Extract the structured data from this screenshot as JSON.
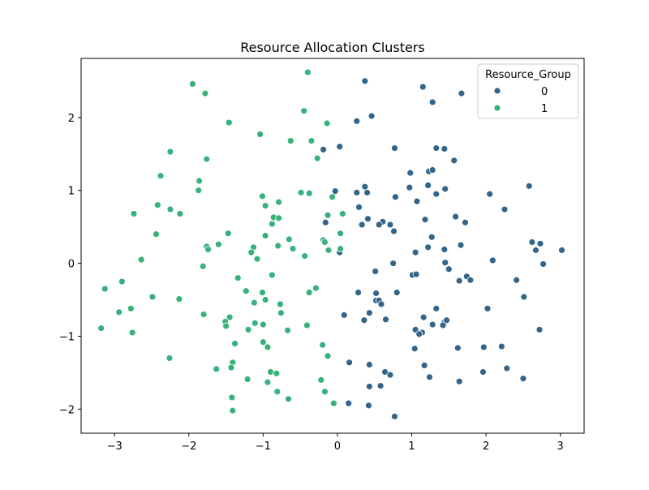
{
  "chart_data": {
    "type": "scatter",
    "title": "Resource Allocation Clusters",
    "xlabel": "",
    "ylabel": "",
    "xlim": [
      -3.45,
      3.32
    ],
    "ylim": [
      -2.33,
      2.81
    ],
    "xticks": [
      -3,
      -2,
      -1,
      0,
      1,
      2,
      3
    ],
    "yticks": [
      -2,
      -1,
      0,
      1,
      2
    ],
    "tick_labels_x": [
      "−3",
      "−2",
      "−1",
      "0",
      "1",
      "2",
      "3"
    ],
    "tick_labels_y": [
      "−2",
      "−1",
      "0",
      "1",
      "2"
    ],
    "grid": false,
    "legend": {
      "title": "Resource_Group",
      "placement": "top-right"
    },
    "series": [
      {
        "name": "0",
        "color": "#33658a",
        "points": [
          [
            0.37,
            2.5
          ],
          [
            1.15,
            2.42
          ],
          [
            1.67,
            2.33
          ],
          [
            1.28,
            2.21
          ],
          [
            0.46,
            2.02
          ],
          [
            0.26,
            1.95
          ],
          [
            0.03,
            1.6
          ],
          [
            -0.19,
            1.56
          ],
          [
            0.77,
            1.58
          ],
          [
            1.33,
            1.58
          ],
          [
            1.44,
            1.57
          ],
          [
            1.57,
            1.41
          ],
          [
            0.98,
            1.24
          ],
          [
            1.23,
            1.26
          ],
          [
            1.28,
            1.28
          ],
          [
            2.58,
            1.06
          ],
          [
            0.37,
            1.05
          ],
          [
            0.97,
            1.04
          ],
          [
            1.22,
            1.07
          ],
          [
            1.45,
            1.02
          ],
          [
            -0.03,
            0.99
          ],
          [
            0.26,
            0.97
          ],
          [
            0.4,
            0.97
          ],
          [
            1.33,
            0.95
          ],
          [
            2.05,
            0.95
          ],
          [
            0.78,
            0.91
          ],
          [
            1.07,
            0.85
          ],
          [
            0.29,
            0.77
          ],
          [
            2.25,
            0.74
          ],
          [
            1.59,
            0.64
          ],
          [
            0.41,
            0.61
          ],
          [
            1.18,
            0.6
          ],
          [
            0.61,
            0.57
          ],
          [
            -0.16,
            0.56
          ],
          [
            1.72,
            0.56
          ],
          [
            0.56,
            0.53
          ],
          [
            0.71,
            0.53
          ],
          [
            0.33,
            0.53
          ],
          [
            0.76,
            0.44
          ],
          [
            1.27,
            0.36
          ],
          [
            2.62,
            0.29
          ],
          [
            2.73,
            0.27
          ],
          [
            1.66,
            0.25
          ],
          [
            1.22,
            0.22
          ],
          [
            1.44,
            0.19
          ],
          [
            2.67,
            0.18
          ],
          [
            3.02,
            0.18
          ],
          [
            1.05,
            0.15
          ],
          [
            0.03,
            0.15
          ],
          [
            2.09,
            0.04
          ],
          [
            1.45,
            0.01
          ],
          [
            0.75,
            0.0
          ],
          [
            2.77,
            -0.01
          ],
          [
            1.5,
            -0.08
          ],
          [
            0.51,
            -0.11
          ],
          [
            1.01,
            -0.16
          ],
          [
            1.06,
            -0.15
          ],
          [
            1.74,
            -0.18
          ],
          [
            1.79,
            -0.23
          ],
          [
            1.64,
            -0.24
          ],
          [
            2.41,
            -0.23
          ],
          [
            0.28,
            -0.4
          ],
          [
            0.52,
            -0.41
          ],
          [
            0.8,
            -0.4
          ],
          [
            2.51,
            -0.46
          ],
          [
            0.52,
            -0.51
          ],
          [
            0.56,
            -0.51
          ],
          [
            0.59,
            -0.56
          ],
          [
            1.33,
            -0.62
          ],
          [
            2.02,
            -0.62
          ],
          [
            0.43,
            -0.68
          ],
          [
            0.09,
            -0.71
          ],
          [
            1.16,
            -0.74
          ],
          [
            0.36,
            -0.78
          ],
          [
            0.65,
            -0.77
          ],
          [
            1.44,
            -0.81
          ],
          [
            1.47,
            -0.78
          ],
          [
            1.28,
            -0.84
          ],
          [
            1.42,
            -0.85
          ],
          [
            2.72,
            -0.91
          ],
          [
            1.05,
            -0.91
          ],
          [
            1.14,
            -0.95
          ],
          [
            1.1,
            -0.97
          ],
          [
            1.97,
            -1.15
          ],
          [
            2.21,
            -1.14
          ],
          [
            1.62,
            -1.16
          ],
          [
            1.04,
            -1.17
          ],
          [
            0.16,
            -1.36
          ],
          [
            0.43,
            -1.39
          ],
          [
            1.17,
            -1.4
          ],
          [
            2.28,
            -1.44
          ],
          [
            0.64,
            -1.49
          ],
          [
            1.96,
            -1.49
          ],
          [
            0.71,
            -1.53
          ],
          [
            1.24,
            -1.56
          ],
          [
            2.5,
            -1.58
          ],
          [
            1.64,
            -1.62
          ],
          [
            0.43,
            -1.69
          ],
          [
            0.58,
            -1.68
          ],
          [
            0.15,
            -1.92
          ],
          [
            0.42,
            -1.95
          ],
          [
            0.77,
            -2.1
          ]
        ]
      },
      {
        "name": "1",
        "color": "#38b27a",
        "points": [
          [
            -0.4,
            2.62
          ],
          [
            -1.95,
            2.46
          ],
          [
            -1.78,
            2.33
          ],
          [
            -0.45,
            2.09
          ],
          [
            -1.46,
            1.93
          ],
          [
            -0.14,
            1.92
          ],
          [
            -1.04,
            1.77
          ],
          [
            -0.63,
            1.68
          ],
          [
            -0.35,
            1.68
          ],
          [
            -2.25,
            1.54
          ],
          [
            -2.25,
            1.53
          ],
          [
            -0.27,
            1.44
          ],
          [
            -1.76,
            1.43
          ],
          [
            -2.38,
            1.2
          ],
          [
            -1.86,
            1.13
          ],
          [
            -1.87,
            1.0
          ],
          [
            -0.49,
            0.97
          ],
          [
            -0.38,
            0.96
          ],
          [
            -1.01,
            0.92
          ],
          [
            -0.07,
            0.91
          ],
          [
            -0.79,
            0.84
          ],
          [
            -2.42,
            0.8
          ],
          [
            -0.97,
            0.79
          ],
          [
            -2.25,
            0.74
          ],
          [
            -2.74,
            0.68
          ],
          [
            -2.12,
            0.68
          ],
          [
            0.07,
            0.68
          ],
          [
            -0.13,
            0.66
          ],
          [
            -0.86,
            0.63
          ],
          [
            -0.79,
            0.62
          ],
          [
            -0.88,
            0.54
          ],
          [
            -1.47,
            0.41
          ],
          [
            -2.44,
            0.4
          ],
          [
            0.04,
            0.41
          ],
          [
            -0.97,
            0.38
          ],
          [
            -0.65,
            0.33
          ],
          [
            -0.19,
            0.32
          ],
          [
            -0.17,
            0.29
          ],
          [
            -1.6,
            0.26
          ],
          [
            -0.8,
            0.24
          ],
          [
            -1.76,
            0.23
          ],
          [
            -1.13,
            0.22
          ],
          [
            -1.74,
            0.19
          ],
          [
            -0.6,
            0.2
          ],
          [
            0.04,
            0.2
          ],
          [
            -0.12,
            0.18
          ],
          [
            -1.16,
            0.15
          ],
          [
            -0.44,
            0.1
          ],
          [
            -1.08,
            0.06
          ],
          [
            -2.64,
            0.05
          ],
          [
            -1.81,
            -0.04
          ],
          [
            -1.34,
            -0.2
          ],
          [
            -0.88,
            -0.16
          ],
          [
            -0.29,
            -0.34
          ],
          [
            -1.23,
            -0.38
          ],
          [
            -1.01,
            -0.4
          ],
          [
            -0.38,
            -0.4
          ],
          [
            -2.49,
            -0.46
          ],
          [
            -3.13,
            -0.35
          ],
          [
            -2.9,
            -0.25
          ],
          [
            -2.13,
            -0.49
          ],
          [
            -0.97,
            -0.5
          ],
          [
            -1.12,
            -0.54
          ],
          [
            -0.77,
            -0.56
          ],
          [
            -2.78,
            -0.62
          ],
          [
            -2.94,
            -0.67
          ],
          [
            -1.8,
            -0.7
          ],
          [
            -0.76,
            -0.68
          ],
          [
            -1.45,
            -0.74
          ],
          [
            -1.51,
            -0.8
          ],
          [
            -1.5,
            -0.86
          ],
          [
            -1.11,
            -0.82
          ],
          [
            -1.0,
            -0.84
          ],
          [
            -0.41,
            -0.85
          ],
          [
            -1.2,
            -0.91
          ],
          [
            -0.67,
            -0.92
          ],
          [
            -2.76,
            -0.95
          ],
          [
            -3.18,
            -0.89
          ],
          [
            -1.0,
            -1.08
          ],
          [
            -0.2,
            -1.12
          ],
          [
            -0.94,
            -1.15
          ],
          [
            -1.38,
            -1.1
          ],
          [
            -2.26,
            -1.3
          ],
          [
            -0.13,
            -1.27
          ],
          [
            -1.41,
            -1.36
          ],
          [
            -1.43,
            -1.43
          ],
          [
            -1.63,
            -1.45
          ],
          [
            -0.9,
            -1.49
          ],
          [
            -0.82,
            -1.51
          ],
          [
            -1.21,
            -1.59
          ],
          [
            -0.22,
            -1.6
          ],
          [
            -0.94,
            -1.63
          ],
          [
            -0.81,
            -1.76
          ],
          [
            -0.17,
            -1.76
          ],
          [
            -0.66,
            -1.86
          ],
          [
            -1.42,
            -1.84
          ],
          [
            -0.05,
            -1.92
          ],
          [
            -1.41,
            -2.02
          ]
        ]
      }
    ]
  }
}
